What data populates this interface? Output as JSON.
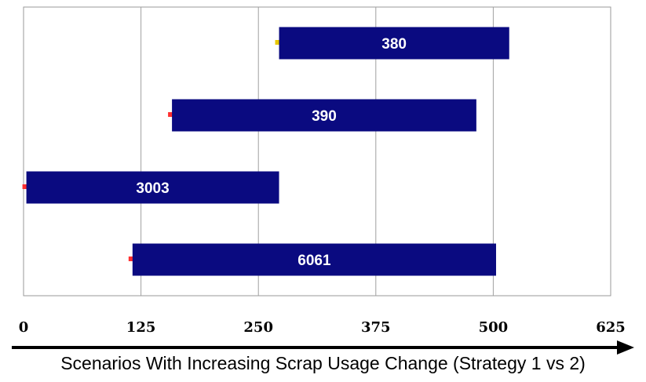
{
  "chart_data": {
    "type": "bar",
    "orientation": "horizontal",
    "series": [
      {
        "bars": [
          {
            "label": "380",
            "start": 272,
            "end": 517
          },
          {
            "label": "390",
            "start": 158,
            "end": 482
          },
          {
            "label": "3003",
            "start": 3,
            "end": 272
          },
          {
            "label": "6061",
            "start": 116,
            "end": 503
          }
        ]
      }
    ],
    "xlim": [
      0,
      625
    ],
    "xticks": [
      "0",
      "125",
      "250",
      "375",
      "500",
      "625"
    ],
    "xlabel": "Scenarios With Increasing Scrap Usage Change (Strategy 1 vs 2)",
    "grid": "vertical",
    "bar_color": "#0a0a80",
    "marker_color": "#e8c800"
  }
}
